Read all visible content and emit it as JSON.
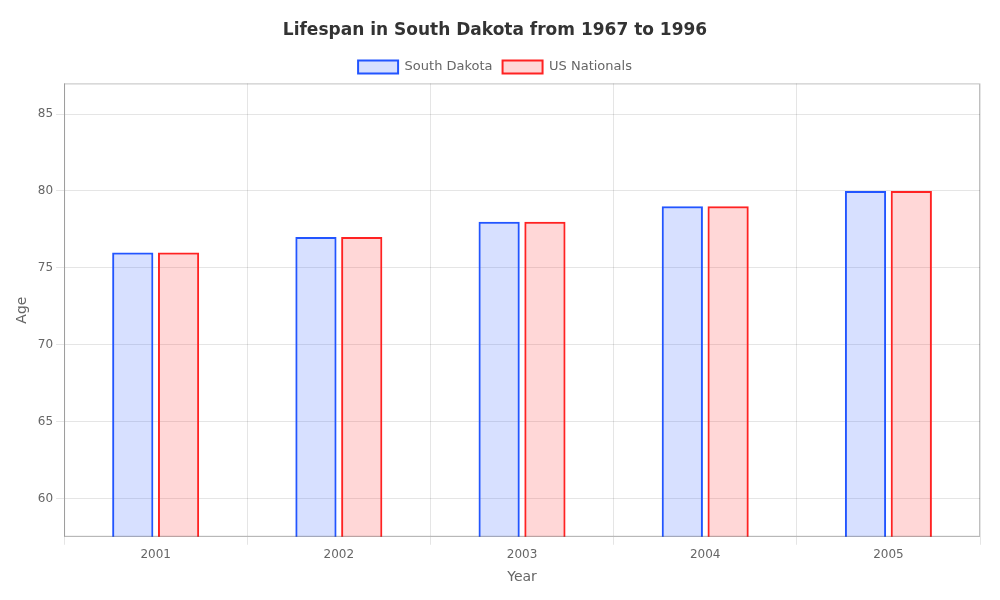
{
  "chart_data": {
    "type": "bar",
    "title": "Lifespan in South Dakota from 1967 to 1996",
    "xlabel": "Year",
    "ylabel": "Age",
    "categories": [
      "2001",
      "2002",
      "2003",
      "2004",
      "2005"
    ],
    "series": [
      {
        "name": "South Dakota",
        "color": "#2255ff",
        "values": [
          76,
          77,
          78,
          79,
          80
        ]
      },
      {
        "name": "US Nationals",
        "color": "#ff2222",
        "values": [
          76,
          77,
          78,
          79,
          80
        ]
      }
    ],
    "ylim": [
      57.5,
      87
    ],
    "yticks": [
      60,
      65,
      70,
      75,
      80,
      85
    ],
    "grid": true,
    "legend": "top"
  }
}
